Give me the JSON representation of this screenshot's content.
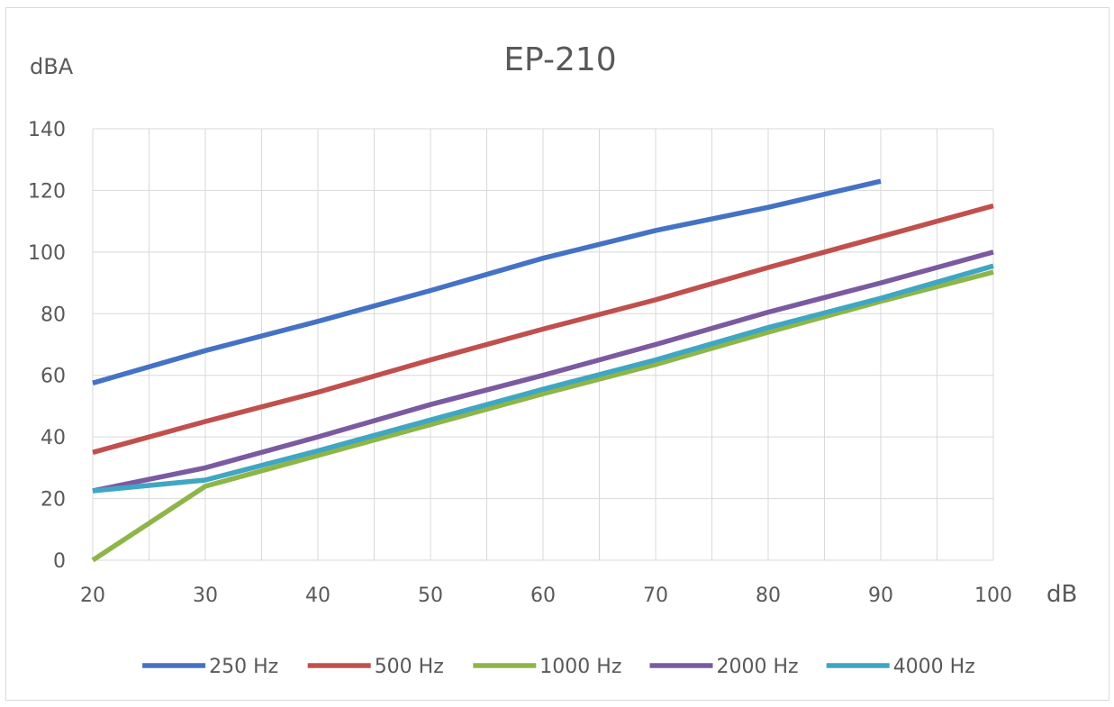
{
  "chart_data": {
    "type": "line",
    "title": "EP-210",
    "xlabel": "dB",
    "ylabel": "dBA",
    "xlim": [
      20,
      100
    ],
    "ylim": [
      0,
      140
    ],
    "x_ticks": [
      "20",
      "30",
      "40",
      "50",
      "60",
      "70",
      "80",
      "90",
      "100"
    ],
    "y_ticks": [
      "0",
      "20",
      "40",
      "60",
      "80",
      "100",
      "120",
      "140"
    ],
    "grid": true,
    "legend_position": "bottom",
    "series": [
      {
        "name": "250 Hz",
        "color": "#4472C4",
        "points": [
          [
            20,
            57.5
          ],
          [
            30,
            68
          ],
          [
            40,
            77.5
          ],
          [
            50,
            87.5
          ],
          [
            60,
            98
          ],
          [
            70,
            107
          ],
          [
            80,
            114.5
          ],
          [
            90,
            123
          ]
        ]
      },
      {
        "name": "500 Hz",
        "color": "#C0504D",
        "points": [
          [
            20,
            35
          ],
          [
            30,
            45
          ],
          [
            40,
            54.5
          ],
          [
            50,
            65
          ],
          [
            60,
            75
          ],
          [
            70,
            84.5
          ],
          [
            80,
            95
          ],
          [
            90,
            105
          ],
          [
            100,
            115
          ]
        ]
      },
      {
        "name": "1000 Hz",
        "color": "#8DB548",
        "points": [
          [
            20,
            0
          ],
          [
            30,
            24
          ],
          [
            40,
            34
          ],
          [
            50,
            44
          ],
          [
            60,
            54
          ],
          [
            70,
            63.5
          ],
          [
            80,
            74
          ],
          [
            90,
            84
          ],
          [
            100,
            93.5
          ]
        ]
      },
      {
        "name": "2000 Hz",
        "color": "#7A5AA0",
        "points": [
          [
            20,
            22.5
          ],
          [
            30,
            30
          ],
          [
            40,
            40
          ],
          [
            50,
            50.5
          ],
          [
            60,
            60
          ],
          [
            70,
            70
          ],
          [
            80,
            80.5
          ],
          [
            90,
            90
          ],
          [
            100,
            100
          ]
        ]
      },
      {
        "name": "4000 Hz",
        "color": "#3FA6C4",
        "points": [
          [
            20,
            22.5
          ],
          [
            30,
            26
          ],
          [
            40,
            35.5
          ],
          [
            50,
            45.5
          ],
          [
            60,
            55.5
          ],
          [
            70,
            65
          ],
          [
            80,
            75.5
          ],
          [
            90,
            85
          ],
          [
            100,
            95.5
          ]
        ]
      }
    ]
  }
}
